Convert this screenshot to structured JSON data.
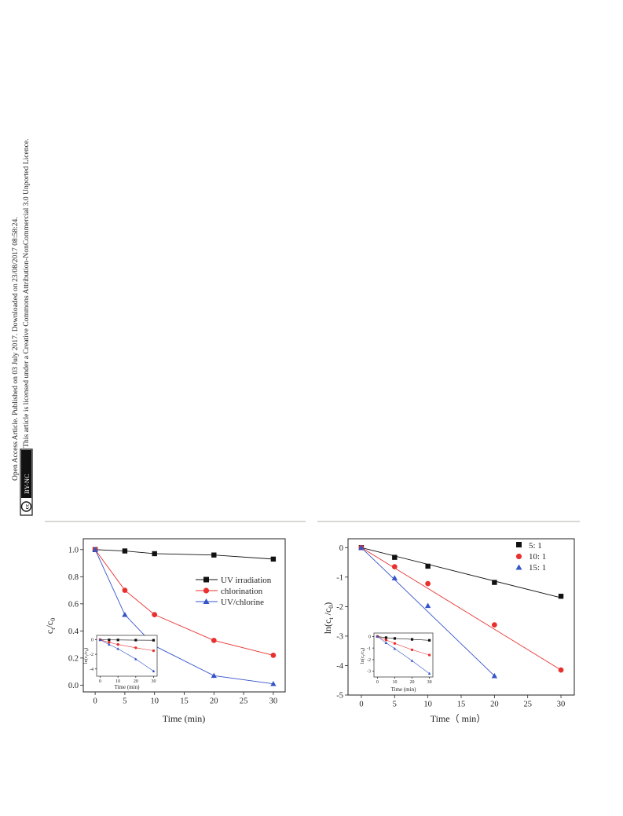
{
  "license": {
    "line1": "Open Access Article. Published on 03 July 2017. Downloaded on 23/08/2017 08:58:24.",
    "line2": "This article is licensed under a Creative Commons Attribution-NonCommercial 3.0 Unported Licence.",
    "badge_cc": "cc",
    "badge_text": "BY-NC"
  },
  "chart_data": [
    {
      "id": "a",
      "type": "line",
      "xlabel": "Time (min)",
      "ylabel": "c",
      "ylabel_sub": "t",
      "ylabel_den": "/c",
      "ylabel_den_sub": "0",
      "xlim": [
        -2,
        32
      ],
      "ylim": [
        -0.05,
        1.08
      ],
      "xticks": [
        0,
        5,
        10,
        15,
        20,
        25,
        30
      ],
      "yticks": [
        0.0,
        0.2,
        0.4,
        0.6,
        0.8,
        1.0
      ],
      "ytick_labels": [
        "0.0",
        "0.2",
        "0.4",
        "0.6",
        "0.8",
        "1.0"
      ],
      "legend_position": "center-right",
      "series": [
        {
          "name": "UV irradiation",
          "marker": "square",
          "color": "#111111",
          "x": [
            0,
            5,
            10,
            20,
            30
          ],
          "y": [
            1.0,
            0.99,
            0.97,
            0.96,
            0.93
          ]
        },
        {
          "name": "chlorination",
          "marker": "circle",
          "color": "#e8302f",
          "x": [
            0,
            5,
            10,
            20,
            30
          ],
          "y": [
            1.0,
            0.7,
            0.52,
            0.33,
            0.22
          ]
        },
        {
          "name": "UV/chlorine",
          "marker": "triangle",
          "color": "#3554c8",
          "x": [
            0,
            5,
            10,
            20,
            30
          ],
          "y": [
            1.0,
            0.52,
            0.29,
            0.07,
            0.01
          ]
        }
      ],
      "inset": {
        "xlabel": "Time (min)",
        "ylabel": "ln(c",
        "ylabel_sub": "t",
        "ylabel_rest": "/c",
        "ylabel_rest_sub": "0",
        "ylabel_close": ")",
        "xticks": [
          0,
          10,
          20,
          30
        ],
        "yticks": [
          0,
          -2,
          -4
        ],
        "xlim": [
          -2,
          32
        ],
        "ylim": [
          -5,
          0.6
        ],
        "series": [
          {
            "marker": "square",
            "color": "#111111",
            "x": [
              0,
              5,
              10,
              20,
              30
            ],
            "y": [
              0,
              -0.02,
              -0.03,
              -0.05,
              -0.07
            ]
          },
          {
            "marker": "circle",
            "color": "#e8302f",
            "x": [
              0,
              5,
              10,
              20,
              30
            ],
            "y": [
              0,
              -0.36,
              -0.65,
              -1.1,
              -1.5
            ]
          },
          {
            "marker": "triangle",
            "color": "#3554c8",
            "x": [
              0,
              5,
              10,
              20,
              30
            ],
            "y": [
              0,
              -0.65,
              -1.24,
              -2.65,
              -4.3
            ]
          }
        ]
      }
    },
    {
      "id": "b",
      "type": "scatter",
      "xlabel": "Time（ min）",
      "ylabel": "ln(c",
      "ylabel_sub": "t",
      "ylabel_rest": " /c",
      "ylabel_rest_sub": "0",
      "ylabel_close": ")",
      "xlim": [
        -2,
        32
      ],
      "ylim": [
        -5,
        0.3
      ],
      "xticks": [
        0,
        5,
        10,
        15,
        20,
        25,
        30
      ],
      "yticks": [
        0,
        -1,
        -2,
        -3,
        -4,
        -5
      ],
      "legend_position": "top-right",
      "series": [
        {
          "name": "5:  1",
          "marker": "square",
          "color": "#111111",
          "x": [
            0,
            5,
            10,
            20,
            30
          ],
          "y": [
            0,
            -0.33,
            -0.63,
            -1.18,
            -1.65
          ],
          "fit": [
            [
              0,
              0
            ],
            [
              30,
              -1.7
            ]
          ]
        },
        {
          "name": "10:  1",
          "marker": "circle",
          "color": "#e8302f",
          "x": [
            0,
            5,
            10,
            20,
            30
          ],
          "y": [
            0,
            -0.65,
            -1.22,
            -2.62,
            -4.15
          ],
          "fit": [
            [
              0,
              0
            ],
            [
              30,
              -4.15
            ]
          ]
        },
        {
          "name": "15:  1",
          "marker": "triangle",
          "color": "#3554c8",
          "x": [
            0,
            5,
            10,
            20
          ],
          "y": [
            0,
            -1.03,
            -1.97,
            -4.35
          ],
          "fit": [
            [
              0,
              0
            ],
            [
              20,
              -4.35
            ]
          ]
        }
      ],
      "inset": {
        "xlabel": "Time (min)",
        "ylabel": "ln(c",
        "ylabel_sub": "t",
        "ylabel_rest": "/c",
        "ylabel_rest_sub": "0",
        "ylabel_close": ")",
        "xticks": [
          0,
          10,
          20,
          30
        ],
        "yticks": [
          0,
          -1,
          -2,
          -3
        ],
        "xlim": [
          -2,
          32
        ],
        "ylim": [
          -3.5,
          0.3
        ],
        "series": [
          {
            "marker": "square",
            "color": "#111111",
            "x": [
              0,
              5,
              10,
              20,
              30
            ],
            "y": [
              0,
              -0.1,
              -0.17,
              -0.25,
              -0.33
            ]
          },
          {
            "marker": "circle",
            "color": "#e8302f",
            "x": [
              0,
              5,
              10,
              20,
              30
            ],
            "y": [
              0,
              -0.3,
              -0.6,
              -1.15,
              -1.6
            ]
          },
          {
            "marker": "triangle",
            "color": "#3554c8",
            "x": [
              0,
              5,
              10,
              20,
              30
            ],
            "y": [
              0,
              -0.55,
              -1.05,
              -2.1,
              -3.2
            ]
          }
        ]
      }
    }
  ]
}
